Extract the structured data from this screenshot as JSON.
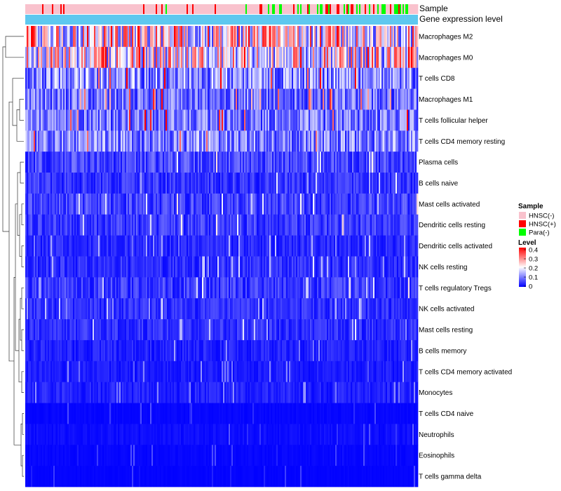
{
  "chart_data": {
    "type": "heatmap",
    "title": "",
    "annotation_rows": {
      "sample": {
        "label": "Sample"
      },
      "gene_expression": {
        "label": "Gene expression level"
      }
    },
    "rows": [
      {
        "name": "Macrophages M2",
        "mean": 0.21
      },
      {
        "name": "Macrophages M0",
        "mean": 0.2
      },
      {
        "name": "T cells CD8",
        "mean": 0.11
      },
      {
        "name": "Macrophages M1",
        "mean": 0.085
      },
      {
        "name": "T cells follicular helper",
        "mean": 0.09
      },
      {
        "name": "T cells CD4 memory resting",
        "mean": 0.1
      },
      {
        "name": "Plasma cells",
        "mean": 0.055
      },
      {
        "name": "B cells naive",
        "mean": 0.04
      },
      {
        "name": "Mast cells activated",
        "mean": 0.05
      },
      {
        "name": "Dendritic cells resting",
        "mean": 0.045
      },
      {
        "name": "Dendritic cells activated",
        "mean": 0.03
      },
      {
        "name": "NK cells resting",
        "mean": 0.035
      },
      {
        "name": "T cells regulatory  Tregs",
        "mean": 0.045
      },
      {
        "name": "NK cells activated",
        "mean": 0.035
      },
      {
        "name": "Mast cells resting",
        "mean": 0.035
      },
      {
        "name": "B cells memory",
        "mean": 0.025
      },
      {
        "name": "T cells CD4 memory activated",
        "mean": 0.02
      },
      {
        "name": "Monocytes",
        "mean": 0.025
      },
      {
        "name": "T cells CD4 naive",
        "mean": 0.005
      },
      {
        "name": "Neutrophils",
        "mean": 0.01
      },
      {
        "name": "Eosinophils",
        "mean": 0.005
      },
      {
        "name": "T cells gamma delta",
        "mean": 0.003
      }
    ],
    "n_columns": 280,
    "sample_groups": {
      "HNSC(-)": 0.82,
      "HNSC(+)": 0.08,
      "Para(-)": 0.1
    },
    "legend": {
      "sample": {
        "title": "Sample",
        "entries": [
          {
            "label": "HNSC(-)",
            "color": "#f9c2cd"
          },
          {
            "label": "HNSC(+)",
            "color": "#ff0000"
          },
          {
            "label": "Para(-)",
            "color": "#00ff00"
          }
        ]
      },
      "level": {
        "title": "Level",
        "ticks": [
          "0.4",
          "0.3",
          "0.2",
          "0.1",
          "0"
        ],
        "range": [
          0,
          0.4
        ],
        "colors": [
          "#0000ff",
          "#ffffff",
          "#ff0000"
        ]
      }
    },
    "gene_expression_color": "#5ec8ef"
  }
}
